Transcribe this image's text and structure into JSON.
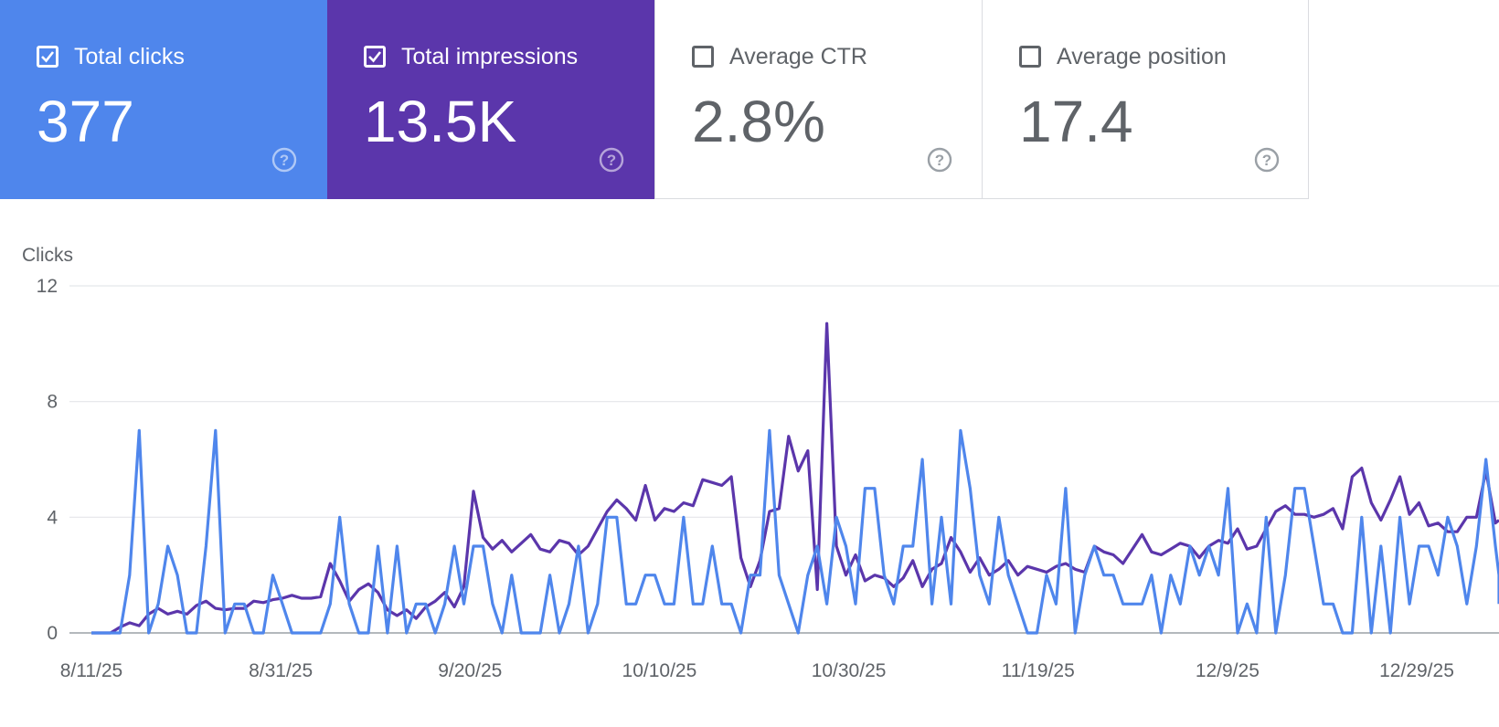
{
  "cards": [
    {
      "label": "Total clicks",
      "value": "377",
      "checked": true,
      "color": "#4f86ec"
    },
    {
      "label": "Total impressions",
      "value": "13.5K",
      "checked": true,
      "color": "#5b36ab"
    },
    {
      "label": "Average CTR",
      "value": "2.8%",
      "checked": false
    },
    {
      "label": "Average position",
      "value": "17.4",
      "checked": false
    }
  ],
  "icons": {
    "checkbox": "checkbox-icon",
    "help": "help-circle-icon"
  },
  "chart_data": {
    "type": "line",
    "ylabel": "Clicks",
    "ylim": [
      0,
      12
    ],
    "yticks": [
      "0",
      "4",
      "8",
      "12"
    ],
    "xticks": [
      "8/11/25",
      "8/31/25",
      "9/20/25",
      "10/10/25",
      "10/30/25",
      "11/19/25",
      "12/9/25",
      "12/29/25"
    ],
    "grid": true,
    "series": [
      {
        "name": "Total clicks",
        "color": "#4f86ec",
        "values": [
          0,
          0,
          0,
          0,
          2,
          7,
          0,
          1,
          3,
          2,
          0,
          0,
          3,
          7,
          0,
          1,
          1,
          0,
          0,
          2,
          1,
          0,
          0,
          0,
          0,
          1,
          4,
          1,
          0,
          0,
          3,
          0,
          3,
          0,
          1,
          1,
          0,
          1,
          3,
          1,
          3,
          3,
          1,
          0,
          2,
          0,
          0,
          0,
          2,
          0,
          1,
          3,
          0,
          1,
          4,
          4,
          1,
          1,
          2,
          2,
          1,
          1,
          4,
          1,
          1,
          3,
          1,
          1,
          0,
          2,
          2,
          7,
          2,
          1,
          0,
          2,
          3,
          1,
          4,
          3,
          1,
          5,
          5,
          2,
          1,
          3,
          3,
          6,
          1,
          4,
          1,
          7,
          5,
          2,
          1,
          4,
          2,
          1,
          0,
          0,
          2,
          1,
          5,
          0,
          2,
          3,
          2,
          2,
          1,
          1,
          1,
          2,
          0,
          2,
          1,
          3,
          2,
          3,
          2,
          5,
          0,
          1,
          0,
          4,
          0,
          2,
          5,
          5,
          3,
          1,
          1,
          0,
          0,
          4,
          0,
          3,
          0,
          4,
          1,
          3,
          3,
          2,
          4,
          3,
          1,
          3,
          6,
          3,
          2,
          1
        ]
      },
      {
        "name": "Total impressions",
        "color": "#5b36ab",
        "values": [
          0,
          0,
          0,
          0.2,
          0.35,
          0.25,
          0.65,
          0.85,
          0.65,
          0.75,
          0.65,
          0.95,
          1.1,
          0.85,
          0.8,
          0.85,
          0.85,
          1.1,
          1.05,
          1.15,
          1.2,
          1.3,
          1.2,
          1.2,
          1.25,
          2.4,
          1.8,
          1.1,
          1.5,
          1.7,
          1.4,
          0.8,
          0.6,
          0.8,
          0.5,
          0.9,
          1.1,
          1.4,
          0.9,
          1.6,
          4.9,
          3.3,
          2.9,
          3.2,
          2.8,
          3.1,
          3.4,
          2.9,
          2.8,
          3.2,
          3.1,
          2.7,
          3,
          3.6,
          4.2,
          4.6,
          4.3,
          3.9,
          5.1,
          3.9,
          4.3,
          4.2,
          4.5,
          4.4,
          5.3,
          5.2,
          5.1,
          5.4,
          2.6,
          1.6,
          2.5,
          4.2,
          4.3,
          6.8,
          5.6,
          6.3,
          1.5,
          10.7,
          3,
          2,
          2.7,
          1.8,
          2,
          1.9,
          1.6,
          1.9,
          2.5,
          1.6,
          2.2,
          2.4,
          3.3,
          2.8,
          2.1,
          2.6,
          2,
          2.2,
          2.5,
          2,
          2.3,
          2.2,
          2.1,
          2.3,
          2.4,
          2.2,
          2.1,
          3,
          2.8,
          2.7,
          2.4,
          2.9,
          3.4,
          2.8,
          2.7,
          2.9,
          3.1,
          3,
          2.6,
          3,
          3.2,
          3.1,
          3.6,
          2.9,
          3,
          3.6,
          4.2,
          4.4,
          4.1,
          4.1,
          4,
          4.1,
          4.3,
          3.6,
          5.4,
          5.7,
          4.5,
          3.9,
          4.6,
          5.4,
          4.1,
          4.5,
          3.7,
          3.8,
          3.5,
          3.5,
          4,
          4,
          5.6,
          3.8,
          3.9
        ]
      }
    ]
  }
}
